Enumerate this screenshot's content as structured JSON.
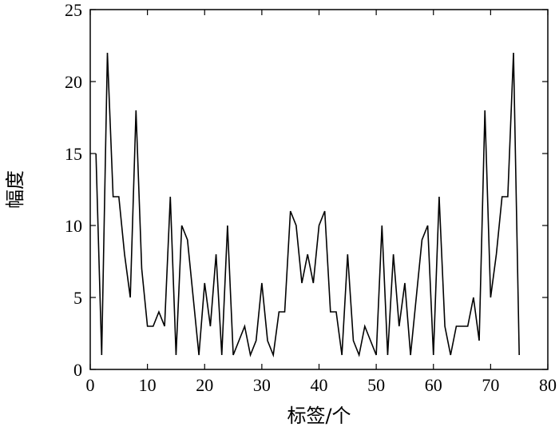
{
  "chart_data": {
    "type": "line",
    "title": "",
    "xlabel": "标签/个",
    "ylabel": "幅度",
    "xlim": [
      0,
      80
    ],
    "ylim": [
      0,
      25
    ],
    "xticks": [
      0,
      10,
      20,
      30,
      40,
      50,
      60,
      70,
      80
    ],
    "yticks": [
      0,
      5,
      10,
      15,
      20,
      25
    ],
    "xtick_labels": [
      "0",
      "10",
      "20",
      "30",
      "40",
      "50",
      "60",
      "70",
      "80"
    ],
    "ytick_labels": [
      "0",
      "5",
      "10",
      "15",
      "20",
      "25"
    ],
    "grid": false,
    "line_color": "#000000",
    "series": [
      {
        "x": [
          1,
          2,
          3,
          4,
          5,
          6,
          7,
          8,
          9,
          10,
          11,
          12,
          13,
          14,
          15,
          16,
          17,
          18,
          19,
          20,
          21,
          22,
          23,
          24,
          25,
          26,
          27,
          28,
          29,
          30,
          31,
          32,
          33,
          34,
          35,
          36,
          37,
          38,
          39,
          40,
          41,
          42,
          43,
          44,
          45,
          46,
          47,
          48,
          49,
          50,
          51,
          52,
          53,
          54,
          55,
          56,
          57,
          58,
          59,
          60,
          61,
          62,
          63,
          64,
          65,
          66,
          67,
          68,
          69,
          70,
          71,
          72,
          73,
          74,
          75
        ],
        "values": [
          15,
          1,
          22,
          12,
          12,
          8,
          5,
          18,
          7,
          3,
          3,
          4,
          3,
          12,
          1,
          10,
          9,
          5,
          1,
          6,
          3,
          8,
          1,
          10,
          1,
          2,
          3,
          1,
          2,
          6,
          2,
          1,
          4,
          4,
          11,
          10,
          6,
          8,
          6,
          10,
          11,
          4,
          4,
          1,
          8,
          2,
          1,
          3,
          2,
          1,
          10,
          1,
          8,
          3,
          6,
          1,
          5,
          9,
          10,
          1,
          12,
          3,
          1,
          3,
          3,
          3,
          5,
          2,
          18,
          5,
          8,
          12,
          12,
          22,
          1
        ]
      }
    ]
  }
}
